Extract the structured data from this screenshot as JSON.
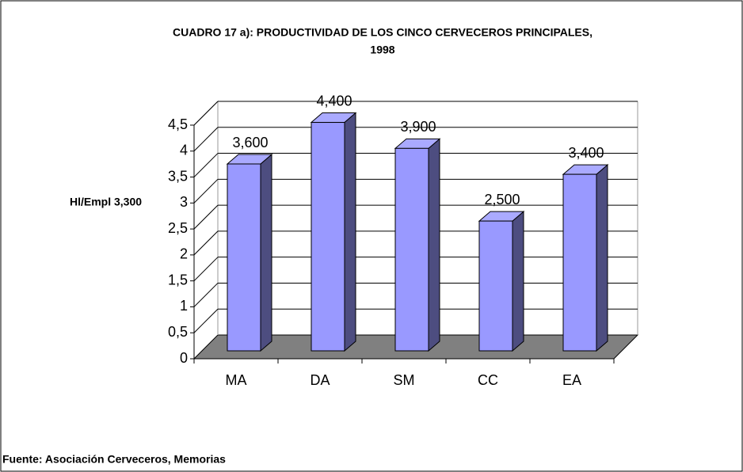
{
  "chart_data": {
    "type": "bar3d",
    "title": "CUADRO 17 a): PRODUCTIVIDAD DE LOS CINCO CERVECEROS PRINCIPALES,",
    "subtitle": "1998",
    "ylabel": "Hl/Empl 3,300",
    "categories": [
      "MA",
      "DA",
      "SM",
      "CC",
      "EA"
    ],
    "values": [
      3.6,
      4.4,
      3.9,
      2.5,
      3.4
    ],
    "value_labels": [
      "3,600",
      "4,400",
      "3,900",
      "2,500",
      "3,400"
    ],
    "color": "#9999ff",
    "ylim": [
      0,
      4.5
    ],
    "yticks": [
      0,
      {
        "value": 0.5,
        "label": "0,5"
      },
      1,
      {
        "value": 1.5,
        "label": "1,5"
      },
      2,
      {
        "value": 2.5,
        "label": "2,5"
      },
      3,
      {
        "value": 3.5,
        "label": "3,5"
      },
      4,
      {
        "value": 4.5,
        "label": "4,5"
      }
    ],
    "grid": true,
    "source": "Fuente: Asociación Cerveceros, Memorias"
  }
}
